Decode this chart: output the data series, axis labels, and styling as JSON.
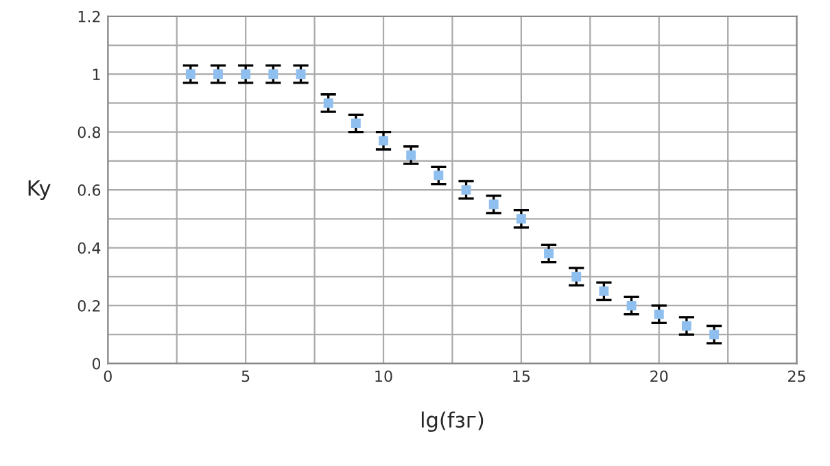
{
  "chart_data": {
    "type": "scatter",
    "xlabel": "lg(fзг)",
    "ylabel": "Ky",
    "x": [
      3,
      4,
      5,
      6,
      7,
      8,
      9,
      10,
      11,
      12,
      13,
      14,
      15,
      16,
      17,
      18,
      19,
      20,
      21,
      22
    ],
    "series": [
      {
        "color": "#8fbfef",
        "values": [
          1,
          1,
          1,
          1,
          1,
          0.9,
          0.83,
          0.77,
          0.72,
          0.65,
          0.6,
          0.55,
          0.5,
          0.38,
          0.3,
          0.25,
          0.2,
          0.17,
          0.13,
          0.1
        ],
        "errors": [
          0.03,
          0.03,
          0.03,
          0.03,
          0.03,
          0.03,
          0.03,
          0.03,
          0.03,
          0.03,
          0.03,
          0.03,
          0.03,
          0.03,
          0.03,
          0.03,
          0.03,
          0.03,
          0.03,
          0.03
        ]
      }
    ],
    "xlim": [
      0,
      25
    ],
    "ylim": [
      0,
      1.2
    ],
    "xticks": [
      0,
      {
        "value": 2.5,
        "label": null
      },
      5,
      {
        "value": 7.5,
        "label": null
      },
      10,
      {
        "value": 12.5,
        "label": null
      },
      15,
      {
        "value": 17.5,
        "label": null
      },
      20,
      {
        "value": 22.5,
        "label": null
      },
      25
    ],
    "yticks": [
      0,
      {
        "value": 0.1,
        "label": null
      },
      0.2,
      {
        "value": 0.3,
        "label": null
      },
      0.4,
      {
        "value": 0.5,
        "label": null
      },
      0.6,
      {
        "value": 0.7,
        "label": null
      },
      0.8,
      {
        "value": 0.9,
        "label": null
      },
      1,
      {
        "value": 1.1,
        "label": null
      },
      1.2
    ],
    "grid": true,
    "marker": "square"
  }
}
